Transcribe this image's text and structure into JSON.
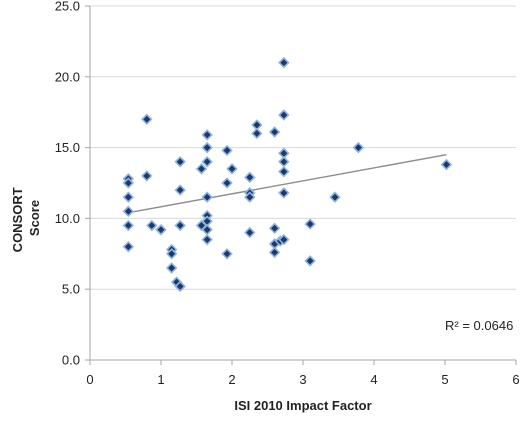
{
  "chart_data": {
    "type": "scatter",
    "title": "",
    "xlabel": "ISI 2010 Impact Factor",
    "ylabel_lines": [
      "CONSORT",
      "Score"
    ],
    "xlim": [
      0,
      6
    ],
    "ylim": [
      0,
      25
    ],
    "x_ticks": [
      0,
      1,
      2,
      3,
      4,
      5,
      6
    ],
    "y_ticks": [
      0,
      5,
      10,
      15,
      20,
      25
    ],
    "x_tick_labels": [
      "0",
      "1",
      "2",
      "3",
      "4",
      "5",
      "6"
    ],
    "y_tick_labels": [
      "0.0",
      "5.0",
      "10.0",
      "15.0",
      "20.0",
      "25.0"
    ],
    "grid": "horizontal",
    "legend": "none",
    "marker_fill": "#1f3864",
    "marker_edge": "#8db3e2",
    "trendline_color": "#8c8c8c",
    "annotation": "R² = 0.0646",
    "trendline": {
      "x": [
        0.54,
        5.02
      ],
      "y": [
        10.4,
        14.5
      ]
    },
    "series": [
      {
        "name": "",
        "points": [
          [
            0.54,
            12.8
          ],
          [
            0.54,
            12.5
          ],
          [
            0.54,
            11.5
          ],
          [
            0.54,
            10.5
          ],
          [
            0.54,
            9.5
          ],
          [
            0.54,
            8.0
          ],
          [
            0.8,
            17.0
          ],
          [
            0.8,
            13.0
          ],
          [
            0.87,
            9.5
          ],
          [
            1.0,
            9.2
          ],
          [
            1.15,
            7.8
          ],
          [
            1.15,
            7.5
          ],
          [
            1.15,
            6.5
          ],
          [
            1.22,
            5.5
          ],
          [
            1.27,
            5.2
          ],
          [
            1.27,
            14.0
          ],
          [
            1.27,
            12.0
          ],
          [
            1.27,
            9.5
          ],
          [
            1.57,
            13.5
          ],
          [
            1.57,
            9.5
          ],
          [
            1.65,
            15.9
          ],
          [
            1.65,
            15.0
          ],
          [
            1.65,
            14.0
          ],
          [
            1.65,
            11.5
          ],
          [
            1.65,
            10.2
          ],
          [
            1.65,
            9.8
          ],
          [
            1.65,
            9.2
          ],
          [
            1.65,
            8.5
          ],
          [
            1.93,
            14.8
          ],
          [
            1.93,
            12.5
          ],
          [
            1.93,
            7.5
          ],
          [
            2.0,
            13.5
          ],
          [
            2.25,
            12.9
          ],
          [
            2.25,
            11.8
          ],
          [
            2.25,
            11.5
          ],
          [
            2.25,
            9.0
          ],
          [
            2.35,
            16.6
          ],
          [
            2.35,
            16.0
          ],
          [
            2.6,
            16.1
          ],
          [
            2.6,
            9.3
          ],
          [
            2.6,
            8.2
          ],
          [
            2.6,
            7.6
          ],
          [
            2.68,
            8.4
          ],
          [
            2.73,
            21.0
          ],
          [
            2.73,
            17.3
          ],
          [
            2.73,
            14.6
          ],
          [
            2.73,
            14.0
          ],
          [
            2.73,
            13.3
          ],
          [
            2.73,
            11.8
          ],
          [
            2.73,
            8.5
          ],
          [
            3.1,
            9.6
          ],
          [
            3.1,
            7.0
          ],
          [
            3.45,
            11.5
          ],
          [
            3.78,
            15.0
          ],
          [
            5.02,
            13.8
          ]
        ]
      }
    ]
  }
}
